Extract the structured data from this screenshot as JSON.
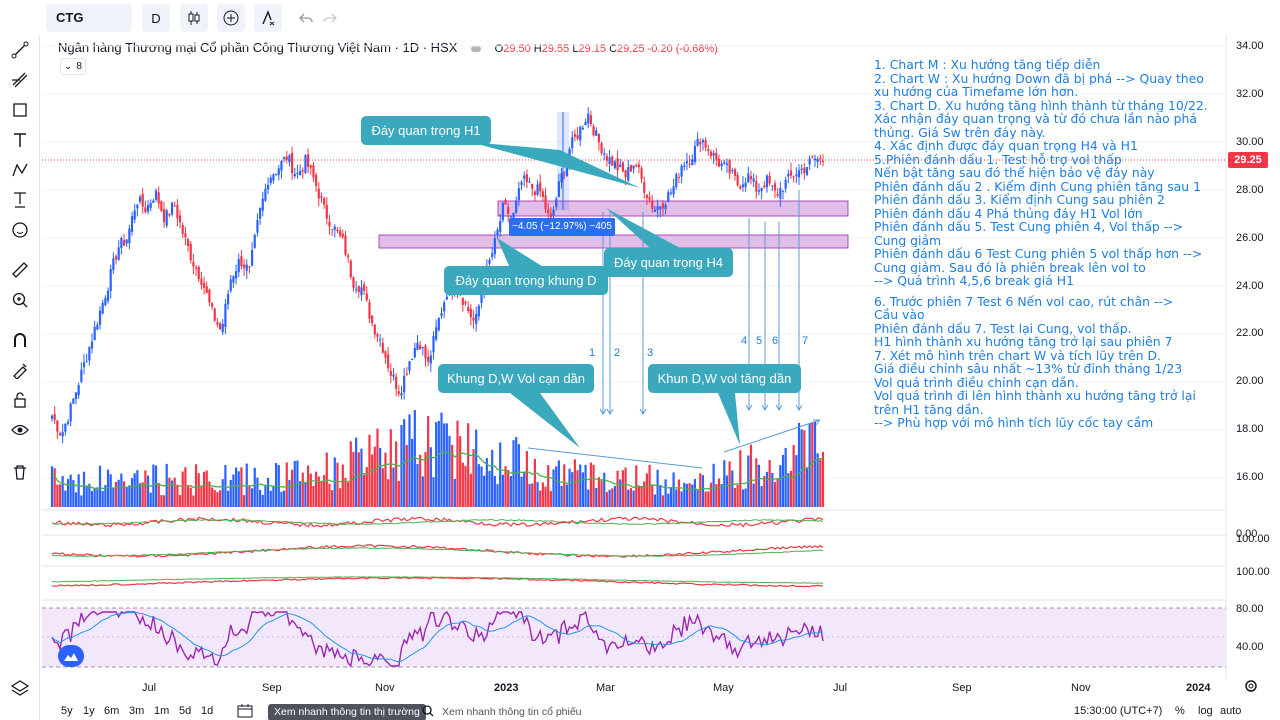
{
  "toolbar": {
    "symbol": "CTG",
    "interval": "D",
    "icons": [
      "candles-icon",
      "indicators-icon",
      "alert-icon",
      "undo-icon",
      "redo-icon"
    ]
  },
  "legend": {
    "title": "Ngân hàng Thương mại Cổ phần Công Thương Việt Nam · 1D · HSX",
    "open_label": "O",
    "open": "29.50",
    "high_label": "H",
    "high": "29.55",
    "low_label": "L",
    "low": "29.15",
    "close_label": "C",
    "close": "29.25",
    "change": "-0.20 (-0.68%)",
    "collapse_count": "8"
  },
  "callouts": {
    "h1": "Đáy quan trọng H1",
    "h4": "Đáy quan trọng H4",
    "d": "Đáy quan trọng khung D",
    "vol_low": "Khung D,W Vol cạn dần",
    "vol_up": "Khun D,W vol tăng dần",
    "measure": "−4.05 (−12.97%) −405"
  },
  "sessions": [
    "1",
    "2",
    "3",
    "4",
    "5",
    "6",
    "7"
  ],
  "notes": [
    "1. Chart M : Xu hướng tăng tiếp diễn",
    "2. Chart W : Xu hướng Down đã bị phá --> Quay theo",
    " xu hướng của Timefame lớn hơn.",
    "3. Chart D. Xu hướng tăng hình thành từ tháng 10/22.",
    "Xác nhận đáy quan trọng và từ đó chưa lần nào phá",
    " thủng. Giá Sw trên đáy này.",
    "4. Xác định được đáy quan trọng H4 và H1",
    "5.Phiên đánh dấu 1. Test hỗ trợ vol thấp",
    "Nến bật tăng sau đó thể hiện bảo vệ đáy này",
    "Phiên đánh dấu 2 . Kiểm định Cung phiên tăng sau 1",
    "Phiên đánh dấu 3. Kiểm định Cung sau phiên 2",
    "Phiên đánh dấu 4 Phá thủng đáy H1 Vol lớn",
    "Phiên đánh dấu 5. Test Cung phiên 4, Vol thấp -->",
    "Cung giảm",
    "Phiên đánh dấu 6 Test Cung phiên 5 vol thấp hơn -->",
    "Cung giảm. Sau đó là phiên break lên vol to",
    "--> Quá trình 4,5,6 break giá H1",
    "",
    "6. Trước phiên 7 Test 6 Nến vol cao, rút chân -->",
    "Cầu vào",
    " Phiên đánh dấu 7. Test lại Cung, vol thấp.",
    " H1 hình thành xu hướng tăng trở lại sau phiên 7",
    "7. Xét mô hình trên chart W và tích lũy trên D.",
    "Giá điều chỉnh sâu nhất ~13% từ đỉnh tháng 1/23",
    "Vol quá trình điều chỉnh cạn dần.",
    "Vol quá trình đi lên hình thành xu hướng tăng trở lại",
    "trên H1 tăng dần.",
    "--> Phù hợp với mô hình tích lũy cốc tay cầm"
  ],
  "price_axis": [
    "34.00",
    "32.00",
    "30.00",
    "28.00",
    "26.00",
    "24.00",
    "22.00",
    "20.00",
    "18.00",
    "16.00"
  ],
  "last_price": "29.25",
  "pane_axis": {
    "p1": "0.00",
    "p2": "100.00",
    "p3": "100.00",
    "rsi_top": "80.00",
    "rsi_mid": "40.00"
  },
  "time_axis": [
    "Jul",
    "Sep",
    "Nov",
    "2023",
    "Mar",
    "May",
    "Jul",
    "Sep",
    "Nov",
    "2024"
  ],
  "bottom": {
    "ranges": [
      "5y",
      "1y",
      "6m",
      "3m",
      "1m",
      "5d",
      "1d"
    ],
    "market_tab": "Xem nhanh thông tin thị trường",
    "stock_tab": "Xem nhanh thông tin cổ phiếu",
    "clock": "15:30:00 (UTC+7)",
    "percent": "%",
    "log": "log",
    "auto": "auto"
  },
  "colors": {
    "up": "#2962ff",
    "down": "#f23645",
    "callout": "#3aa9bd",
    "zone": "#e1bee7",
    "notes": "#1e7ee0",
    "rsi": "#9c27b0"
  },
  "chart_data": {
    "type": "candlestick",
    "ylim": [
      19,
      34.5
    ],
    "close_path": [
      18.6,
      17.8,
      18.9,
      20.2,
      21.5,
      22.8,
      24.1,
      25.6,
      26.0,
      27.6,
      27.2,
      27.9,
      26.8,
      27.4,
      26.1,
      25.0,
      24.2,
      22.9,
      22.1,
      24.3,
      25.1,
      24.6,
      26.9,
      28.5,
      28.9,
      29.4,
      28.6,
      29.2,
      28.3,
      27.1,
      26.4,
      25.8,
      24.2,
      23.9,
      22.5,
      21.7,
      20.4,
      19.6,
      20.9,
      21.8,
      20.7,
      22.4,
      23.8,
      24.1,
      23.2,
      22.4,
      24.3,
      25.6,
      27.3,
      26.8,
      28.4,
      28.1,
      27.9,
      26.6,
      28.3,
      29.7,
      30.4,
      31.2,
      30.1,
      29.4,
      29.0,
      28.6,
      29.2,
      28.1,
      27.2,
      27.5,
      28.0,
      29.1,
      29.4,
      30.2,
      29.6,
      29.1,
      28.8,
      28.2,
      28.6,
      28.0,
      28.4,
      27.8,
      28.3,
      28.7,
      28.9,
      29.3,
      29.25
    ]
  }
}
